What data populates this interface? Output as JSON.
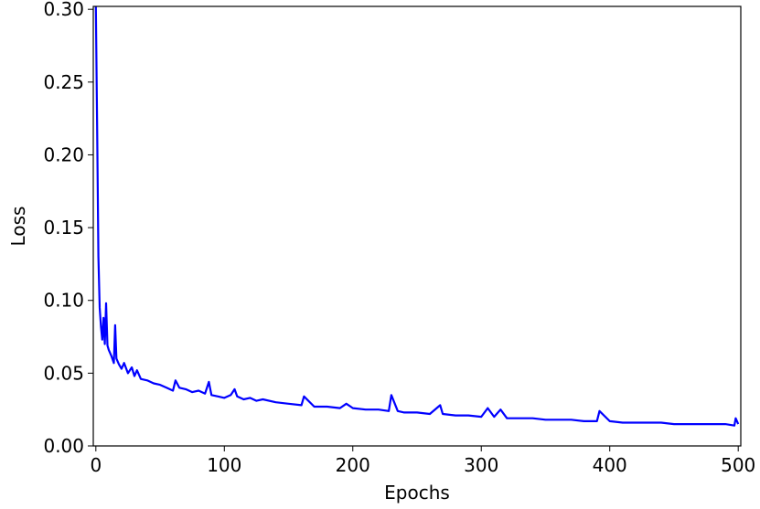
{
  "chart_data": {
    "type": "line",
    "title": "",
    "xlabel": "Epochs",
    "ylabel": "Loss",
    "xlim": [
      -2,
      502
    ],
    "ylim": [
      0.0,
      0.302
    ],
    "x_ticks": [
      0,
      100,
      200,
      300,
      400,
      500
    ],
    "y_ticks": [
      0.0,
      0.05,
      0.1,
      0.15,
      0.2,
      0.25,
      0.3
    ],
    "x_tick_labels": [
      "0",
      "100",
      "200",
      "300",
      "400",
      "500"
    ],
    "y_tick_labels": [
      "0.00",
      "0.05",
      "0.10",
      "0.15",
      "0.20",
      "0.25",
      "0.30"
    ],
    "grid": false,
    "legend": "none",
    "series": [
      {
        "color": "#0000ff",
        "x": [
          0,
          1,
          2,
          3,
          4,
          5,
          6,
          7,
          8,
          9,
          10,
          12,
          14,
          15,
          16,
          18,
          20,
          22,
          25,
          28,
          30,
          32,
          35,
          40,
          45,
          50,
          55,
          60,
          62,
          65,
          70,
          75,
          80,
          85,
          88,
          90,
          95,
          100,
          105,
          108,
          110,
          115,
          120,
          125,
          130,
          140,
          150,
          160,
          162,
          170,
          180,
          190,
          195,
          200,
          210,
          220,
          228,
          230,
          235,
          240,
          250,
          260,
          268,
          270,
          280,
          290,
          300,
          305,
          310,
          315,
          320,
          330,
          340,
          350,
          360,
          370,
          380,
          390,
          392,
          400,
          410,
          420,
          430,
          440,
          450,
          460,
          470,
          480,
          490,
          497,
          498,
          500
        ],
        "y": [
          0.302,
          0.22,
          0.13,
          0.095,
          0.082,
          0.073,
          0.088,
          0.07,
          0.098,
          0.069,
          0.066,
          0.062,
          0.057,
          0.083,
          0.06,
          0.056,
          0.053,
          0.057,
          0.05,
          0.054,
          0.048,
          0.052,
          0.046,
          0.045,
          0.043,
          0.042,
          0.04,
          0.038,
          0.045,
          0.04,
          0.039,
          0.037,
          0.038,
          0.036,
          0.044,
          0.035,
          0.034,
          0.033,
          0.035,
          0.039,
          0.034,
          0.032,
          0.033,
          0.031,
          0.032,
          0.03,
          0.029,
          0.028,
          0.034,
          0.027,
          0.027,
          0.026,
          0.029,
          0.026,
          0.025,
          0.025,
          0.024,
          0.035,
          0.024,
          0.023,
          0.023,
          0.022,
          0.028,
          0.022,
          0.021,
          0.021,
          0.02,
          0.026,
          0.02,
          0.025,
          0.019,
          0.019,
          0.019,
          0.018,
          0.018,
          0.018,
          0.017,
          0.017,
          0.024,
          0.017,
          0.016,
          0.016,
          0.016,
          0.016,
          0.015,
          0.015,
          0.015,
          0.015,
          0.015,
          0.014,
          0.019,
          0.015
        ]
      }
    ]
  }
}
